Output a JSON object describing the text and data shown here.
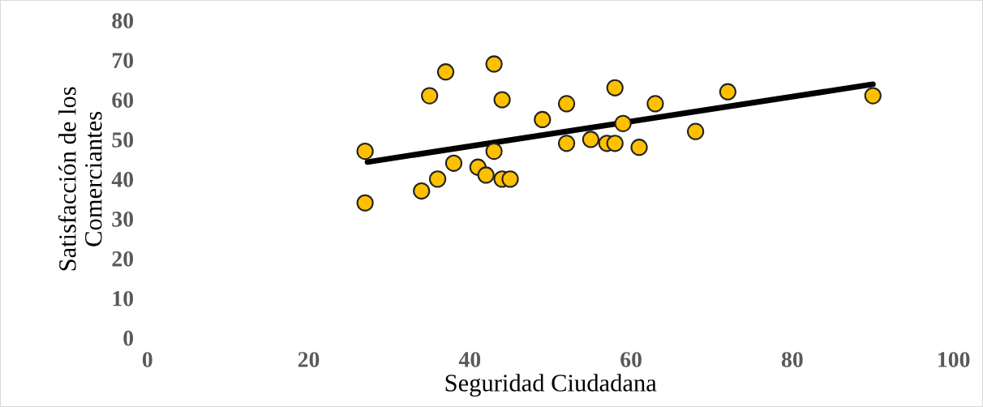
{
  "chart_data": {
    "type": "scatter",
    "xlabel": "Seguridad Ciudadana",
    "ylabel": "Satisfacción de los\nComerciantes",
    "xlim": [
      0,
      100
    ],
    "xticks": [
      0,
      20,
      40,
      60,
      80,
      100
    ],
    "ylim": [
      0,
      80
    ],
    "yticks": [
      0,
      10,
      20,
      30,
      40,
      50,
      60,
      70,
      80
    ],
    "grid": false,
    "legend": false,
    "series": [
      {
        "marker": "circle",
        "color": "#ffc000",
        "x": [
          27,
          27,
          34,
          35,
          36,
          37,
          38,
          41,
          42,
          43,
          43,
          44,
          44,
          45,
          49,
          52,
          52,
          55,
          57,
          58,
          58,
          59,
          61,
          63,
          68,
          72,
          90
        ],
        "values": [
          47,
          34,
          37,
          61,
          40,
          67,
          44,
          43,
          41,
          69,
          47,
          60,
          40,
          40,
          55,
          59,
          49,
          50,
          49,
          63,
          49,
          54,
          48,
          59,
          52,
          62,
          61
        ]
      },
      {
        "type": "line",
        "color": "#000000",
        "x": [
          27.3,
          90
        ],
        "values": [
          44.3,
          63.9
        ]
      }
    ]
  }
}
